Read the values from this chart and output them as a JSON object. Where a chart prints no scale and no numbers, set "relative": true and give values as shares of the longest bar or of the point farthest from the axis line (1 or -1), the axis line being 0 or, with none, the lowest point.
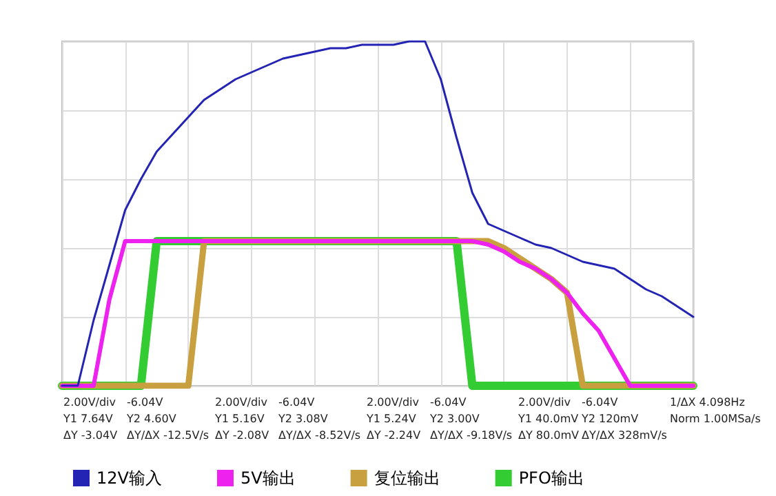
{
  "chart_data": {
    "type": "line",
    "relative": true,
    "grid": true,
    "legend": "bottom",
    "marker": "none",
    "line_style": "solid",
    "categories": [
      null,
      null,
      null,
      null,
      null,
      null,
      null,
      null,
      null,
      null,
      null,
      null,
      null,
      null,
      null,
      null,
      null,
      null,
      null,
      null,
      null,
      null,
      null,
      null,
      null,
      null,
      null,
      null,
      null,
      null,
      null,
      null,
      null,
      null,
      null,
      null,
      null,
      null,
      null,
      null,
      null
    ],
    "series": [
      {
        "name": "12V输入",
        "color": "#2323b4",
        "values": [
          0,
          0,
          0.19,
          0.35,
          0.51,
          0.6,
          0.68,
          0.73,
          0.78,
          0.83,
          0.86,
          0.89,
          0.91,
          0.93,
          0.95,
          0.96,
          0.97,
          0.98,
          0.98,
          0.99,
          0.99,
          0.99,
          1.0,
          1.0,
          0.89,
          0.72,
          0.56,
          0.47,
          0.45,
          0.43,
          0.41,
          0.4,
          0.38,
          0.36,
          0.35,
          0.34,
          0.31,
          0.28,
          0.26,
          0.23,
          0.2
        ]
      },
      {
        "name": "5V输出",
        "color": "#ee22ee",
        "values": [
          0,
          0,
          0,
          0.25,
          0.42,
          0.42,
          0.42,
          0.42,
          0.42,
          0.42,
          0.42,
          0.42,
          0.42,
          0.42,
          0.42,
          0.42,
          0.42,
          0.42,
          0.42,
          0.42,
          0.42,
          0.42,
          0.42,
          0.42,
          0.42,
          0.42,
          0.42,
          0.41,
          0.39,
          0.36,
          0.34,
          0.31,
          0.27,
          0.21,
          0.16,
          0.08,
          0,
          0,
          0,
          0,
          0
        ]
      },
      {
        "name": "复位输出",
        "color": "#c8a040",
        "values": [
          0,
          0,
          0,
          0,
          0,
          0,
          0,
          0,
          0,
          0.42,
          0.42,
          0.42,
          0.42,
          0.42,
          0.42,
          0.42,
          0.42,
          0.42,
          0.42,
          0.42,
          0.42,
          0.42,
          0.42,
          0.42,
          0.42,
          0.42,
          0.42,
          0.42,
          0.4,
          0.37,
          0.34,
          0.31,
          0.27,
          0,
          0,
          0,
          0,
          0,
          0,
          0,
          0
        ]
      },
      {
        "name": "PFO输出",
        "color": "#33cc33",
        "values": [
          0,
          0,
          0,
          0,
          0,
          0,
          0.42,
          0.42,
          0.42,
          0.42,
          0.42,
          0.42,
          0.42,
          0.42,
          0.42,
          0.42,
          0.42,
          0.42,
          0.42,
          0.42,
          0.42,
          0.42,
          0.42,
          0.42,
          0.42,
          0.42,
          0,
          0,
          0,
          0,
          0,
          0,
          0,
          0,
          0,
          0,
          0,
          0,
          0,
          0,
          0
        ]
      }
    ],
    "annotations": [
      "2.00V/div",
      "-6.04V",
      "Y1 7.64V",
      "Y2 4.60V",
      "ΔY -3.04V",
      "ΔY/ΔX -12.5V/s",
      "2.00V/div",
      "-6.04V",
      "Y1 5.16V",
      "Y2 3.08V",
      "ΔY -2.08V",
      "ΔY/ΔX -8.52V/s",
      "2.00V/div",
      "-6.04V",
      "Y1 5.24V",
      "Y2 3.00V",
      "ΔY -2.24V",
      "ΔY/ΔX -9.18V/s",
      "2.00V/div",
      "-6.04V",
      "Y1 40.0mV",
      "Y2 120mV",
      "ΔY 80.0mV",
      "ΔY/ΔX 328mV/s",
      "1/ΔX 4.098Hz",
      "Norm 1.00MSa/s"
    ]
  }
}
